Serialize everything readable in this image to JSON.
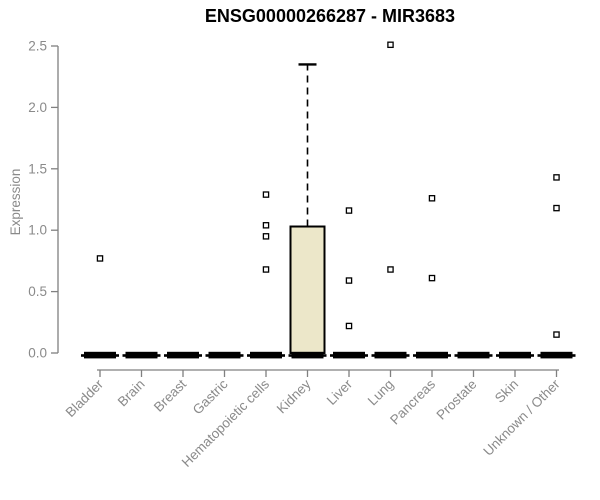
{
  "chart_data": {
    "type": "boxplot",
    "title": "ENSG00000266287 - MIR3683",
    "ylabel": "Expression",
    "xlabel": "",
    "ylim": [
      0,
      2.5
    ],
    "yticks": [
      0,
      0.5,
      1,
      1.5,
      2,
      2.5
    ],
    "grid": false,
    "legend": "none",
    "categories": [
      "Bladder",
      "Brain",
      "Breast",
      "Gastric",
      "Hematopoietic cells",
      "Kidney",
      "Liver",
      "Lung",
      "Pancreas",
      "Prostate",
      "Skin",
      "Unknown / Other"
    ],
    "boxes": [
      {
        "category": "Bladder",
        "q1": 0,
        "median": 0,
        "q3": 0,
        "whisker_low": 0,
        "whisker_high": 0,
        "outliers": [
          0.77
        ]
      },
      {
        "category": "Brain",
        "q1": 0,
        "median": 0,
        "q3": 0,
        "whisker_low": 0,
        "whisker_high": 0,
        "outliers": []
      },
      {
        "category": "Breast",
        "q1": 0,
        "median": 0,
        "q3": 0,
        "whisker_low": 0,
        "whisker_high": 0,
        "outliers": []
      },
      {
        "category": "Gastric",
        "q1": 0,
        "median": 0,
        "q3": 0,
        "whisker_low": 0,
        "whisker_high": 0,
        "outliers": []
      },
      {
        "category": "Hematopoietic cells",
        "q1": 0,
        "median": 0,
        "q3": 0,
        "whisker_low": 0,
        "whisker_high": 0,
        "outliers": [
          1.29,
          1.04,
          0.95,
          0.68
        ]
      },
      {
        "category": "Kidney",
        "q1": 0,
        "median": 0,
        "q3": 1.03,
        "whisker_low": 0,
        "whisker_high": 2.35,
        "outliers": []
      },
      {
        "category": "Liver",
        "q1": 0,
        "median": 0,
        "q3": 0,
        "whisker_low": 0,
        "whisker_high": 0,
        "outliers": [
          1.16,
          0.59,
          0.22
        ]
      },
      {
        "category": "Lung",
        "q1": 0,
        "median": 0,
        "q3": 0,
        "whisker_low": 0,
        "whisker_high": 0,
        "outliers": [
          2.51,
          0.68
        ]
      },
      {
        "category": "Pancreas",
        "q1": 0,
        "median": 0,
        "q3": 0,
        "whisker_low": 0,
        "whisker_high": 0,
        "outliers": [
          1.26,
          0.61
        ]
      },
      {
        "category": "Prostate",
        "q1": 0,
        "median": 0,
        "q3": 0,
        "whisker_low": 0,
        "whisker_high": 0,
        "outliers": []
      },
      {
        "category": "Skin",
        "q1": 0,
        "median": 0,
        "q3": 0,
        "whisker_low": 0,
        "whisker_high": 0,
        "outliers": []
      },
      {
        "category": "Unknown / Other",
        "q1": 0,
        "median": 0,
        "q3": 0,
        "whisker_low": 0,
        "whisker_high": 0,
        "outliers": [
          1.43,
          1.18,
          0.15
        ]
      }
    ],
    "colors": {
      "box_fill": "#ece7c9",
      "box_border": "#000000",
      "whisker": "#000000",
      "median": "#000000",
      "axis": "#808080",
      "tick_labels": "#8a8a8a",
      "title": "#000000",
      "outlier_fill": "#ffffff",
      "outlier_border": "#000000",
      "background": "#ffffff"
    }
  }
}
